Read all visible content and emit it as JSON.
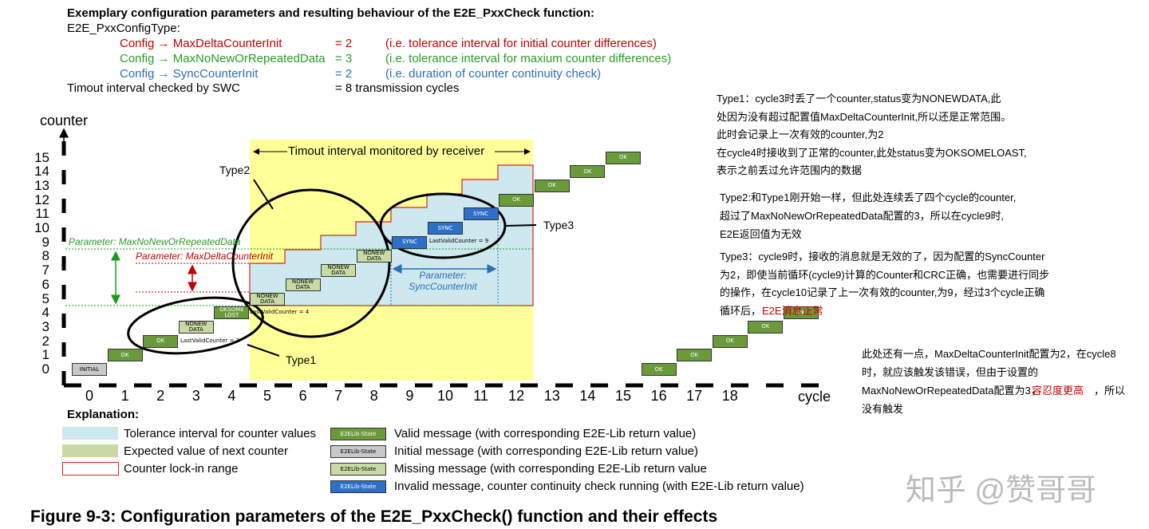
{
  "header": {
    "title": "Exemplary configuration parameters and resulting behaviour of the E2E_PxxCheck function:",
    "type_name": "E2E_PxxConfigType:",
    "params": [
      {
        "name": "Config → MaxDeltaCounterInit",
        "value": "= 2",
        "note": "(i.e. tolerance interval for initial counter differences)"
      },
      {
        "name": "Config → MaxNoNewOrRepeatedData",
        "value": "= 3",
        "note": "(i.e. tolerance interval for maxium counter differences)"
      },
      {
        "name": "Config → SyncCounterInit",
        "value": "= 2",
        "note": "(i.e. duration of counter continuity check)"
      }
    ],
    "timeout": {
      "name": "Timout interval checked by SWC",
      "value": "= 8 transmission cycles"
    }
  },
  "diagram": {
    "y_label": "counter",
    "x_label": "cycle",
    "y_ticks": [
      "0",
      "1",
      "2",
      "3",
      "4",
      "5",
      "6",
      "7",
      "8",
      "9",
      "10",
      "11",
      "12",
      "13",
      "14",
      "15"
    ],
    "x_ticks": [
      "0",
      "1",
      "2",
      "3",
      "4",
      "5",
      "6",
      "7",
      "8",
      "9",
      "10",
      "11",
      "12",
      "13",
      "14",
      "15",
      "16",
      "17",
      "18"
    ],
    "timeout_label": "Timout interval monitored by receiver",
    "param_nonew": "Parameter: MaxNoNewOrRepeatedData",
    "param_delta": "Parameter: MaxDeltaCounterInit",
    "param_sync": "Parameter: SyncCounterInit",
    "last_valid": [
      "LastValidCounter = 2",
      "LastValidCounter = 4",
      "LastValidCounter = 9"
    ],
    "types": [
      "Type1",
      "Type2",
      "Type3"
    ],
    "messages": [
      {
        "label": "INITIAL",
        "state": "initial"
      },
      {
        "label": "OK",
        "state": "valid"
      },
      {
        "label": "OK",
        "state": "valid"
      },
      {
        "label": "NONEW DATA",
        "state": "missing"
      },
      {
        "label": "OKSOME LOST",
        "state": "valid"
      },
      {
        "label": "NONEW DATA",
        "state": "missing"
      },
      {
        "label": "NONEW DATA",
        "state": "missing"
      },
      {
        "label": "NONEW DATA",
        "state": "missing"
      },
      {
        "label": "NONEW DATA",
        "state": "missing"
      },
      {
        "label": "SYNC",
        "state": "invalid"
      },
      {
        "label": "SYNC",
        "state": "invalid"
      },
      {
        "label": "SYNC",
        "state": "invalid"
      },
      {
        "label": "OK",
        "state": "valid"
      },
      {
        "label": "OK",
        "state": "valid"
      },
      {
        "label": "OK",
        "state": "valid"
      },
      {
        "label": "OK",
        "state": "valid"
      },
      {
        "label": "OK",
        "state": "valid"
      },
      {
        "label": "OK",
        "state": "valid"
      },
      {
        "label": "OK",
        "state": "valid"
      },
      {
        "label": "OK",
        "state": "valid"
      },
      {
        "label": "OK",
        "state": "valid"
      }
    ]
  },
  "legend": {
    "title": "Explanation:",
    "areas": [
      "Tolerance interval for counter values",
      "Expected value of next counter",
      "Counter lock-in range"
    ],
    "states": [
      {
        "box": "E2ELib-State",
        "text": "Valid message (with corresponding E2E-Lib return value)"
      },
      {
        "box": "E2ELib-State",
        "text": "Initial message (with corresponding E2E-Lib return value)"
      },
      {
        "box": "E2ELib-State",
        "text": "Missing message (with corresponding E2E-Lib return value"
      },
      {
        "box": "E2ELib-State",
        "text": "Invalid message, counter continuity check running (with E2E-Lib return value)"
      }
    ]
  },
  "notes": {
    "type1": [
      "Type1：cycle3时丢了一个counter,status变为NONEWDATA,此",
      "处因为没有超过配置值MaxDeltaCounterInit,所以还是正常范围。",
      "此时会记录上一次有效的counter,为2",
      "在cycle4时接收到了正常的counter,此处status变为OKSOMELOAST,",
      "表示之前丢过允许范围内的数据"
    ],
    "type2": [
      "Type2:和Type1刚开始一样，但此处连续丢了四个cycle的counter,",
      "超过了MaxNoNewOrRepeatedData配置的3，所以在cycle9时,",
      "E2E返回值为无效"
    ],
    "type3": [
      "Type3：cycle9时，接收的消息就是无效的了，因为配置的SyncCounter",
      "为2，即使当前循环(cycle9)计算的Counter和CRC正确，也需要进行同步",
      "的操作，在cycle10记录了上一次有效的counter,为9，经过3个cycle正确",
      "循环后，"
    ],
    "type3_red": "E2E消息正常",
    "extra": [
      "此处还有一点，MaxDeltaCounterInit配置为2，在cycle8",
      "时，就应该触发该错误，但由于设置的",
      "MaxNoNewOrRepeatedData配置为3，",
      "没有触发"
    ],
    "extra_red": "容忍度更高",
    "extra_tail": "，所以"
  },
  "caption": "Figure 9-3: Configuration parameters of the E2E_PxxCheck() function and their effects",
  "watermark": "知乎 @赞哥哥"
}
